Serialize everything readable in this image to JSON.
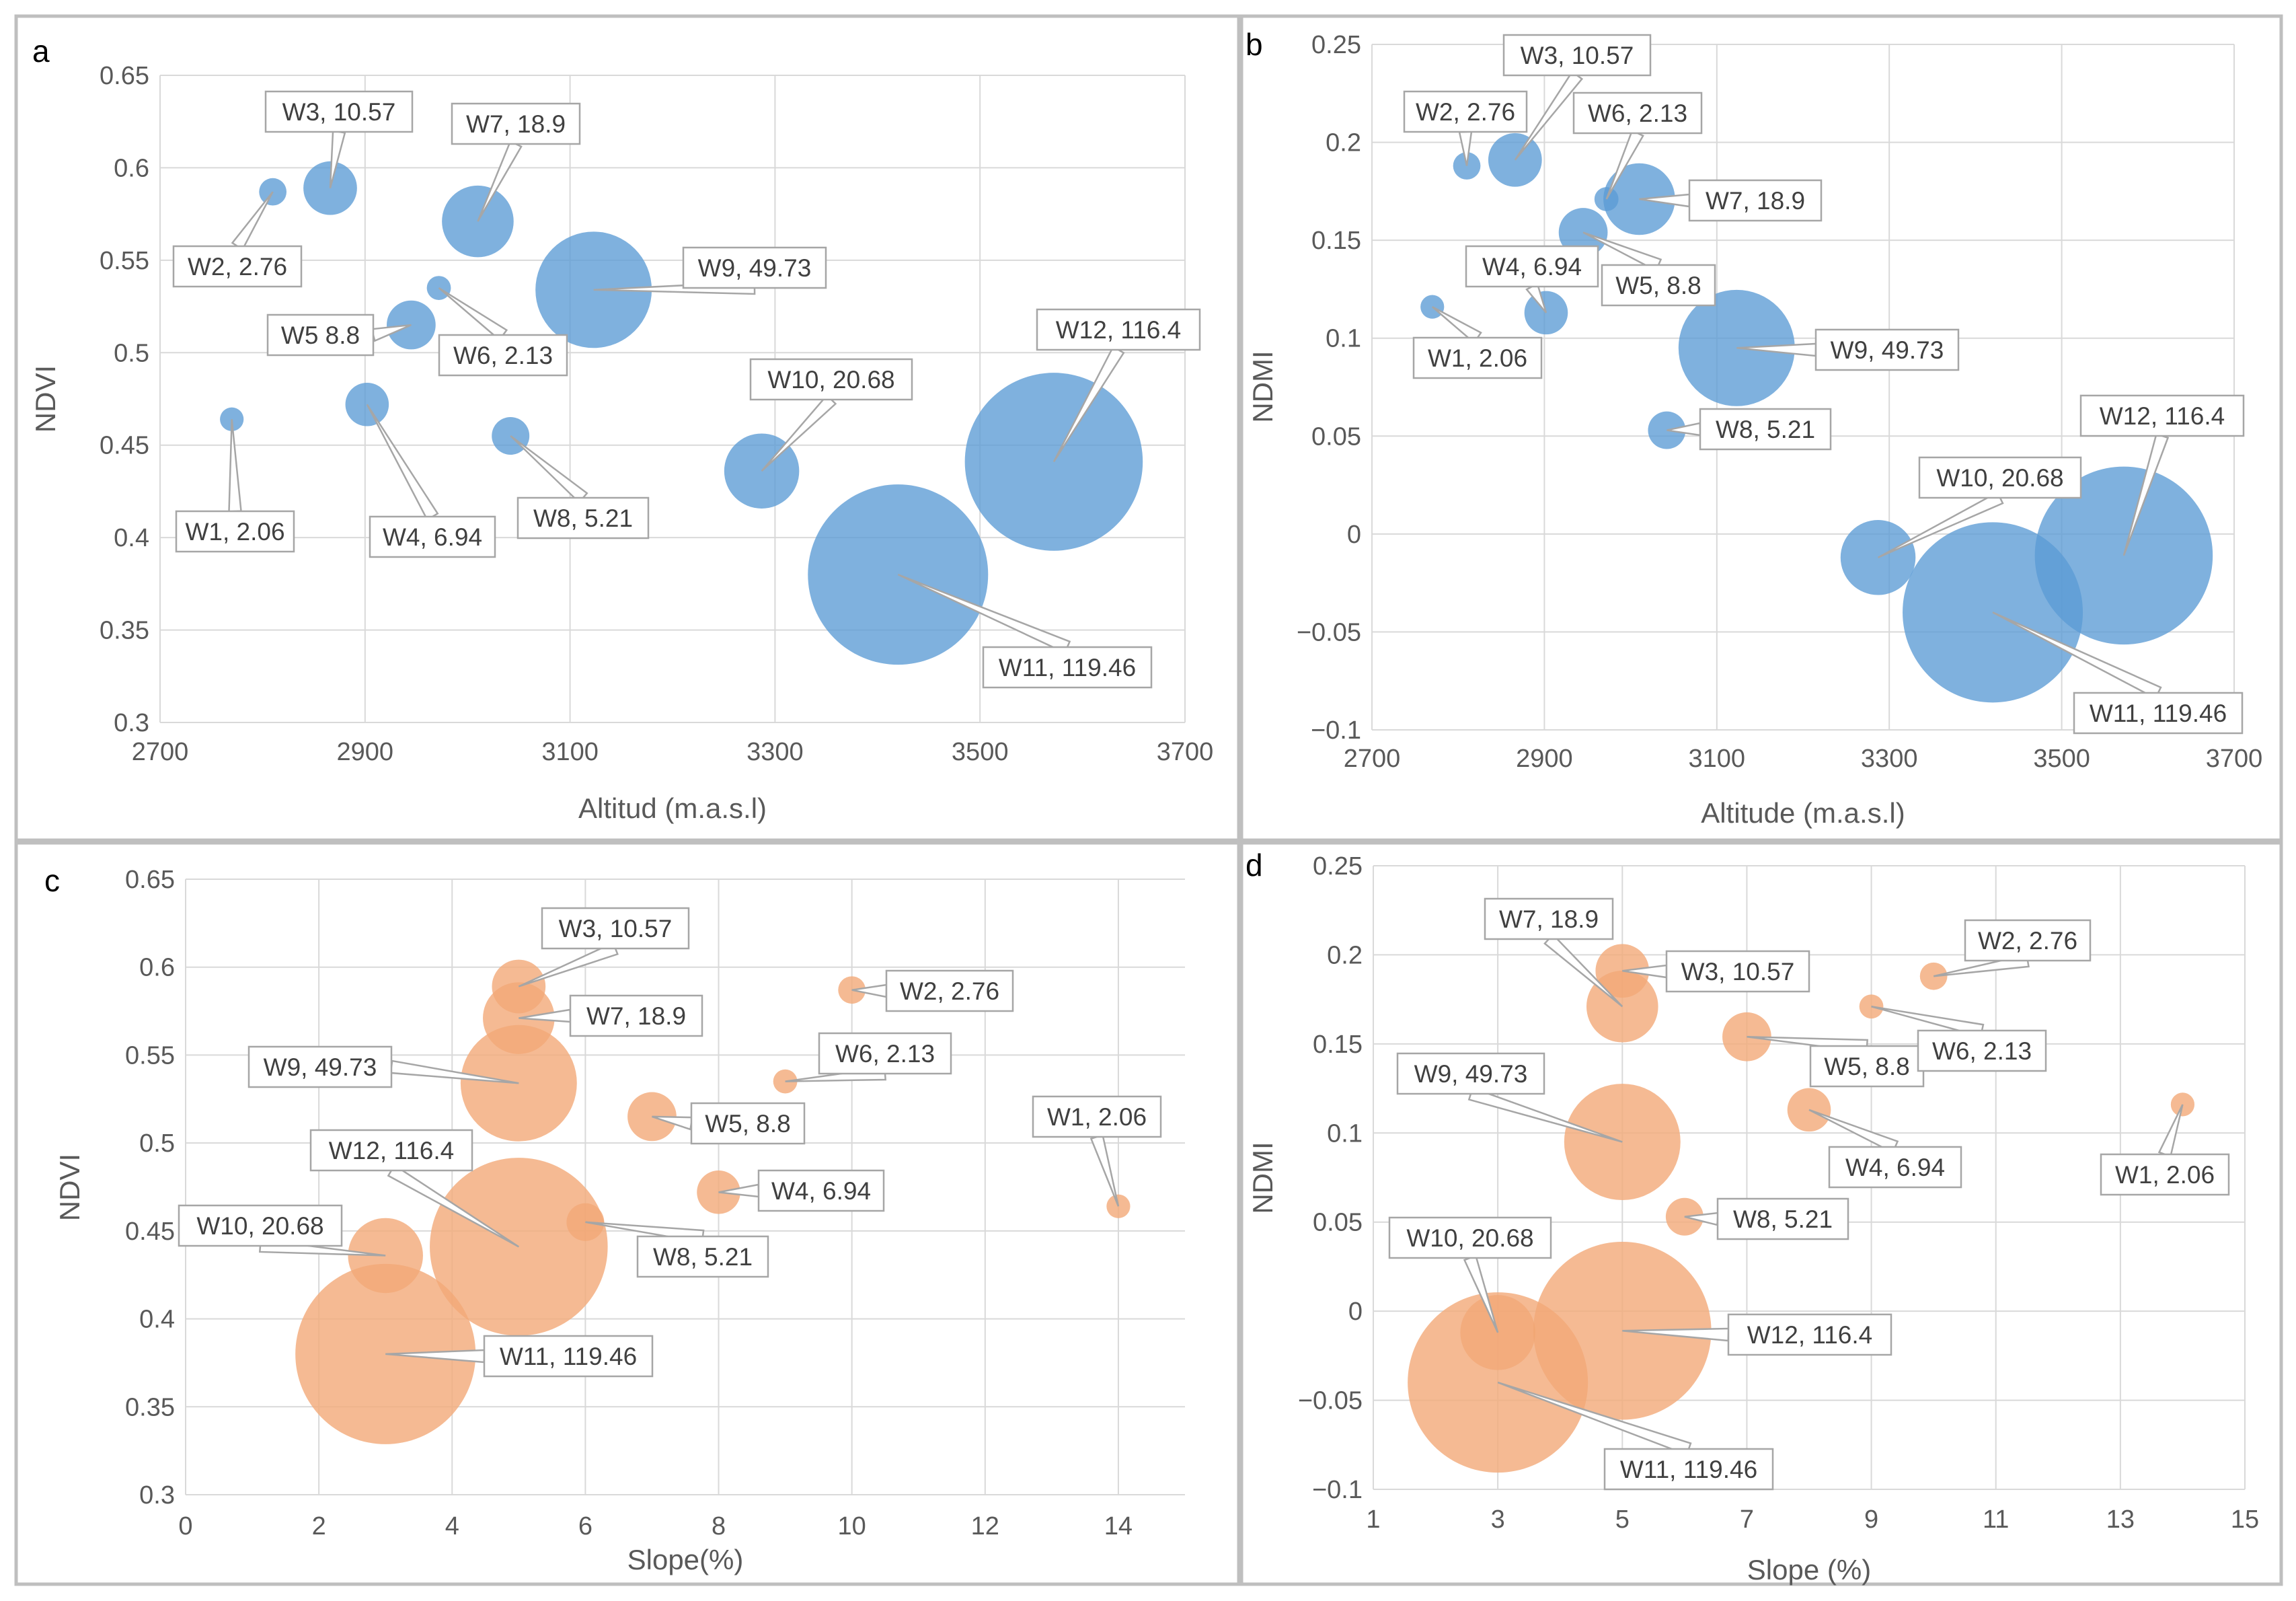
{
  "colors": {
    "blue_bubble": "#5B9BD5",
    "orange_bubble": "#F4B183",
    "orange_dark": "#ED7D31",
    "grid": "#D9D9D9",
    "axis_text": "#595959",
    "panel_border": "#BFBFBF",
    "callout_border": "#A6A6A6"
  },
  "chart_data": [
    {
      "type": "scatter",
      "panel": "a",
      "xlabel": "Altitud (m.a.s.l)",
      "ylabel": "NDVI",
      "xlim": [
        2700,
        3700
      ],
      "ylim": [
        0.3,
        0.65
      ],
      "xticks": [
        2700,
        2900,
        3100,
        3300,
        3500,
        3700
      ],
      "yticks": [
        0.3,
        0.35,
        0.4,
        0.45,
        0.5,
        0.55,
        0.6,
        0.65
      ],
      "ytick_labels": [
        "0.3",
        "0.35",
        "0.4",
        "0.45",
        "0.5",
        "0.55",
        "0.6",
        "0.65"
      ],
      "color": "blue",
      "points": [
        {
          "id": "W1",
          "x": 2770,
          "y": 0.464,
          "size": 2.06,
          "label": "W1, 2.06"
        },
        {
          "id": "W2",
          "x": 2810,
          "y": 0.587,
          "size": 2.76,
          "label": "W2, 2.76"
        },
        {
          "id": "W3",
          "x": 2866,
          "y": 0.589,
          "size": 10.57,
          "label": "W3, 10.57"
        },
        {
          "id": "W4",
          "x": 2902,
          "y": 0.472,
          "size": 6.94,
          "label": "W4, 6.94"
        },
        {
          "id": "W5",
          "x": 2945,
          "y": 0.515,
          "size": 8.8,
          "label": "W5 8.8"
        },
        {
          "id": "W6",
          "x": 2972,
          "y": 0.535,
          "size": 2.13,
          "label": "W6, 2.13"
        },
        {
          "id": "W7",
          "x": 3010,
          "y": 0.571,
          "size": 18.9,
          "label": "W7, 18.9"
        },
        {
          "id": "W8",
          "x": 3042,
          "y": 0.455,
          "size": 5.21,
          "label": "W8, 5.21"
        },
        {
          "id": "W9",
          "x": 3123,
          "y": 0.534,
          "size": 49.73,
          "label": "W9, 49.73"
        },
        {
          "id": "W10",
          "x": 3287,
          "y": 0.436,
          "size": 20.68,
          "label": "W10, 20.68"
        },
        {
          "id": "W11",
          "x": 3420,
          "y": 0.38,
          "size": 119.46,
          "label": "W11, 119.46"
        },
        {
          "id": "W12",
          "x": 3572,
          "y": 0.441,
          "size": 116.4,
          "label": "W12, 116.4"
        }
      ]
    },
    {
      "type": "scatter",
      "panel": "b",
      "xlabel": "Altitude (m.a.s.l)",
      "ylabel": "NDMI",
      "xlim": [
        2700,
        3700
      ],
      "ylim": [
        -0.1,
        0.25
      ],
      "xticks": [
        2700,
        2900,
        3100,
        3300,
        3500,
        3700
      ],
      "yticks": [
        -0.1,
        -0.05,
        0,
        0.05,
        0.1,
        0.15,
        0.2,
        0.25
      ],
      "ytick_labels": [
        "−0.1",
        "−0.05",
        "0",
        "0.05",
        "0.1",
        "0.15",
        "0.2",
        "0.25"
      ],
      "color": "blue",
      "points": [
        {
          "id": "W1",
          "x": 2770,
          "y": 0.116,
          "size": 2.06,
          "label": "W1, 2.06"
        },
        {
          "id": "W2",
          "x": 2810,
          "y": 0.188,
          "size": 2.76,
          "label": "W2, 2.76"
        },
        {
          "id": "W3",
          "x": 2866,
          "y": 0.191,
          "size": 10.57,
          "label": "W3, 10.57"
        },
        {
          "id": "W4",
          "x": 2902,
          "y": 0.113,
          "size": 6.94,
          "label": "W4, 6.94"
        },
        {
          "id": "W5",
          "x": 2945,
          "y": 0.154,
          "size": 8.8,
          "label": "W5, 8.8"
        },
        {
          "id": "W6",
          "x": 2972,
          "y": 0.171,
          "size": 2.13,
          "label": "W6, 2.13"
        },
        {
          "id": "W7",
          "x": 3010,
          "y": 0.171,
          "size": 18.9,
          "label": "W7, 18.9"
        },
        {
          "id": "W8",
          "x": 3042,
          "y": 0.053,
          "size": 5.21,
          "label": "W8, 5.21"
        },
        {
          "id": "W9",
          "x": 3123,
          "y": 0.095,
          "size": 49.73,
          "label": "W9, 49.73"
        },
        {
          "id": "W10",
          "x": 3287,
          "y": -0.012,
          "size": 20.68,
          "label": "W10, 20.68"
        },
        {
          "id": "W11",
          "x": 3420,
          "y": -0.04,
          "size": 119.46,
          "label": "W11, 119.46"
        },
        {
          "id": "W12",
          "x": 3572,
          "y": -0.011,
          "size": 116.4,
          "label": "W12, 116.4"
        }
      ]
    },
    {
      "type": "scatter",
      "panel": "c",
      "xlabel": "Slope(%)",
      "ylabel": "NDVI",
      "xlim": [
        0,
        15
      ],
      "ylim": [
        0.3,
        0.65
      ],
      "xticks": [
        0,
        2,
        4,
        6,
        8,
        10,
        12,
        14
      ],
      "yticks": [
        0.3,
        0.35,
        0.4,
        0.45,
        0.5,
        0.55,
        0.6,
        0.65
      ],
      "ytick_labels": [
        "0.3",
        "0.35",
        "0.4",
        "0.45",
        "0.5",
        "0.55",
        "0.6",
        "0.65"
      ],
      "color": "orange",
      "points": [
        {
          "id": "W1",
          "x": 14,
          "y": 0.464,
          "size": 2.06,
          "label": "W1, 2.06"
        },
        {
          "id": "W2",
          "x": 10,
          "y": 0.587,
          "size": 2.76,
          "label": "W2, 2.76"
        },
        {
          "id": "W3",
          "x": 5,
          "y": 0.589,
          "size": 10.57,
          "label": "W3, 10.57"
        },
        {
          "id": "W4",
          "x": 8,
          "y": 0.472,
          "size": 6.94,
          "label": "W4, 6.94"
        },
        {
          "id": "W5",
          "x": 7,
          "y": 0.515,
          "size": 8.8,
          "label": "W5, 8.8"
        },
        {
          "id": "W6",
          "x": 9,
          "y": 0.535,
          "size": 2.13,
          "label": "W6, 2.13"
        },
        {
          "id": "W7",
          "x": 5,
          "y": 0.571,
          "size": 18.9,
          "label": "W7, 18.9"
        },
        {
          "id": "W8",
          "x": 6,
          "y": 0.455,
          "size": 5.21,
          "label": "W8, 5.21"
        },
        {
          "id": "W9",
          "x": 5,
          "y": 0.534,
          "size": 49.73,
          "label": "W9, 49.73"
        },
        {
          "id": "W10",
          "x": 3,
          "y": 0.436,
          "size": 20.68,
          "label": "W10, 20.68"
        },
        {
          "id": "W11",
          "x": 3,
          "y": 0.38,
          "size": 119.46,
          "label": "W11, 119.46"
        },
        {
          "id": "W12",
          "x": 5,
          "y": 0.441,
          "size": 116.4,
          "label": "W12, 116.4"
        }
      ]
    },
    {
      "type": "scatter",
      "panel": "d",
      "xlabel": "Slope (%)",
      "ylabel": "NDMI",
      "xlim": [
        1,
        15
      ],
      "ylim": [
        -0.1,
        0.25
      ],
      "xticks": [
        1,
        3,
        5,
        7,
        9,
        11,
        13,
        15
      ],
      "yticks": [
        -0.1,
        -0.05,
        0,
        0.05,
        0.1,
        0.15,
        0.2,
        0.25
      ],
      "ytick_labels": [
        "−0.1",
        "−0.05",
        "0",
        "0.05",
        "0.1",
        "0.15",
        "0.2",
        "0.25"
      ],
      "color": "orange",
      "points": [
        {
          "id": "W1",
          "x": 14,
          "y": 0.116,
          "size": 2.06,
          "label": "W1, 2.06"
        },
        {
          "id": "W2",
          "x": 10,
          "y": 0.188,
          "size": 2.76,
          "label": "W2, 2.76"
        },
        {
          "id": "W3",
          "x": 5,
          "y": 0.191,
          "size": 10.57,
          "label": "W3, 10.57"
        },
        {
          "id": "W4",
          "x": 8,
          "y": 0.113,
          "size": 6.94,
          "label": "W4, 6.94"
        },
        {
          "id": "W5",
          "x": 7,
          "y": 0.154,
          "size": 8.8,
          "label": "W5, 8.8"
        },
        {
          "id": "W6",
          "x": 9,
          "y": 0.171,
          "size": 2.13,
          "label": "W6, 2.13"
        },
        {
          "id": "W7",
          "x": 5,
          "y": 0.171,
          "size": 18.9,
          "label": "W7, 18.9"
        },
        {
          "id": "W8",
          "x": 6,
          "y": 0.053,
          "size": 5.21,
          "label": "W8, 5.21"
        },
        {
          "id": "W9",
          "x": 5,
          "y": 0.095,
          "size": 49.73,
          "label": "W9, 49.73"
        },
        {
          "id": "W10",
          "x": 3,
          "y": -0.012,
          "size": 20.68,
          "label": "W10, 20.68"
        },
        {
          "id": "W11",
          "x": 3,
          "y": -0.04,
          "size": 119.46,
          "label": "W11, 119.46"
        },
        {
          "id": "W12",
          "x": 5,
          "y": -0.011,
          "size": 116.4,
          "label": "W12, 116.4"
        }
      ]
    }
  ]
}
